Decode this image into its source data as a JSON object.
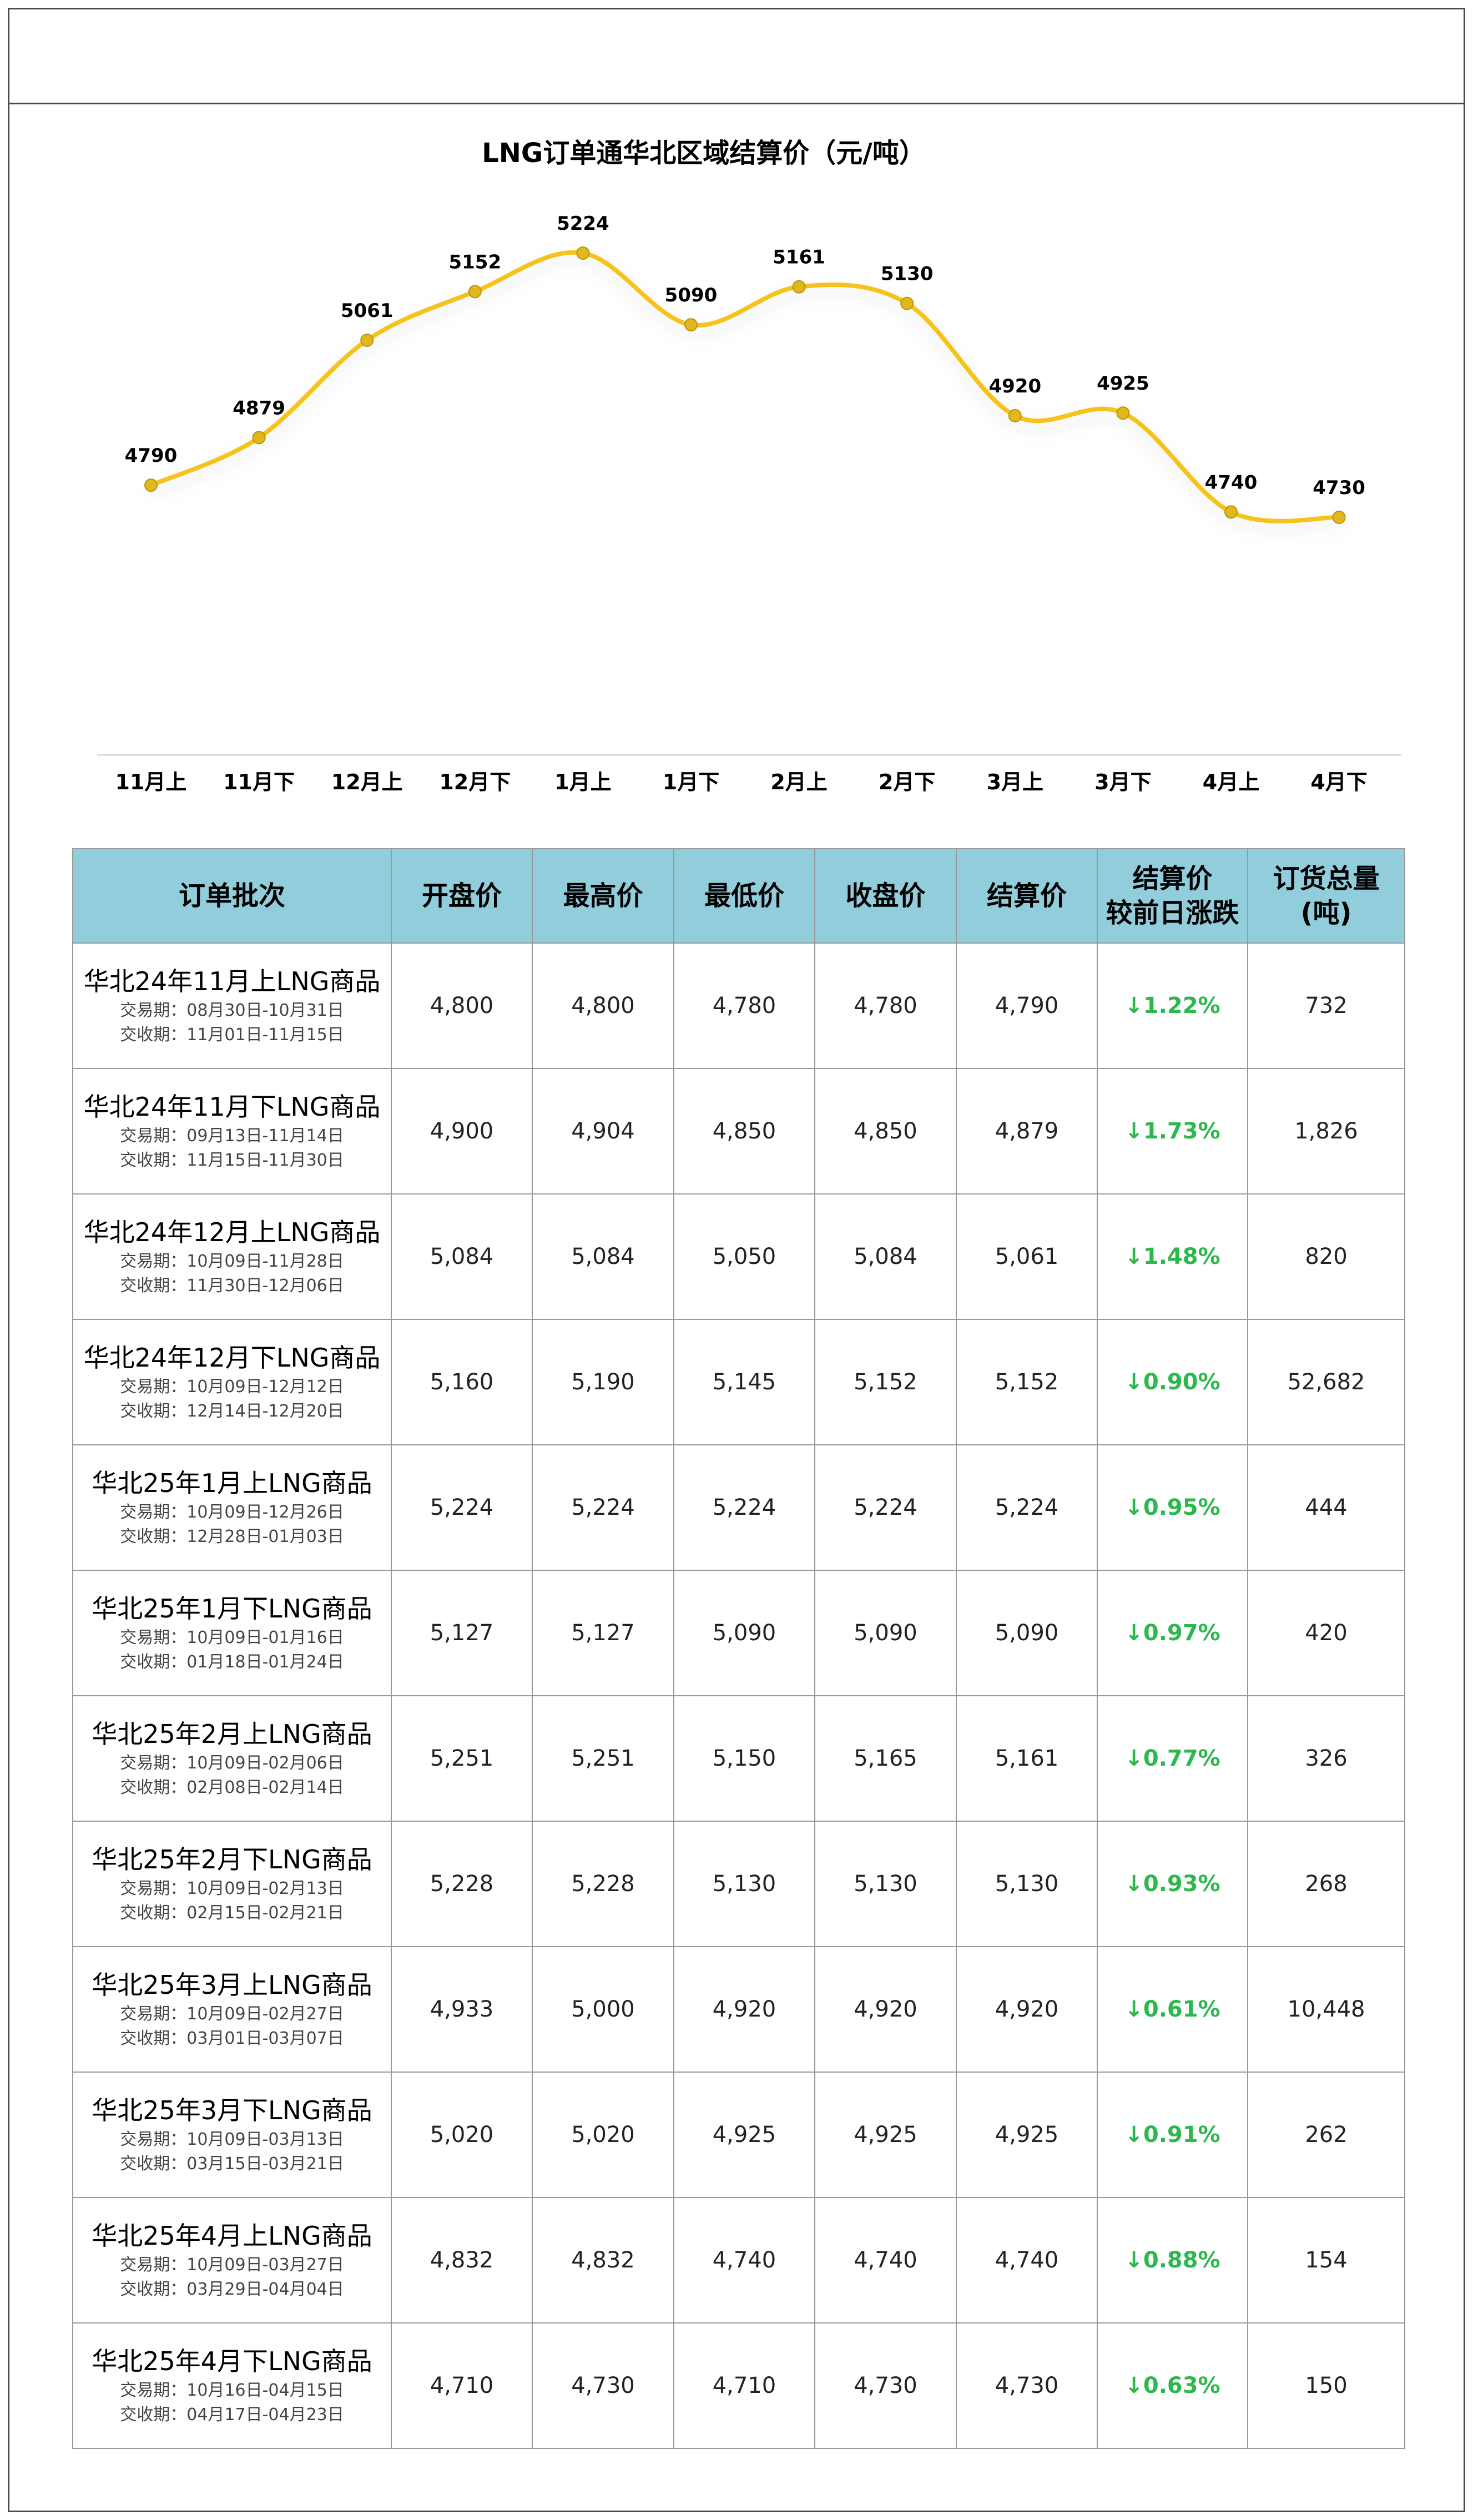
{
  "chart_data": {
    "type": "line",
    "title": "LNG订单通华北区域结算价（元/吨）",
    "categories": [
      "11月上",
      "11月下",
      "12月上",
      "12月下",
      "1月上",
      "1月下",
      "2月上",
      "2月下",
      "3月上",
      "3月下",
      "4月上",
      "4月下"
    ],
    "values": [
      4790,
      4879,
      5061,
      5152,
      5224,
      5090,
      5161,
      5130,
      4920,
      4925,
      4740,
      4730
    ],
    "data_labels": [
      "4790",
      "4879",
      "5061",
      "5152",
      "5224",
      "5090",
      "5161",
      "5130",
      "4920",
      "4925",
      "4740",
      "4730"
    ],
    "line_color": "#f5c31a",
    "marker_color": "#e0b81c",
    "grid": false,
    "legend": "none"
  },
  "table": {
    "headers": [
      "订单批次",
      "开盘价",
      "最高价",
      "最低价",
      "收盘价",
      "结算价",
      "结算价\n较前日涨跌",
      "订货总量\n(吨)"
    ],
    "rows": [
      {
        "name": "华北24年11月上LNG商品",
        "trade": "交易期：08月30日-10月31日",
        "deliver": "交收期：11月01日-11月15日",
        "cells": [
          "4,800",
          "4,800",
          "4,780",
          "4,780",
          "4,790"
        ],
        "change": "↓1.22%",
        "volume": "732"
      },
      {
        "name": "华北24年11月下LNG商品",
        "trade": "交易期：09月13日-11月14日",
        "deliver": "交收期：11月15日-11月30日",
        "cells": [
          "4,900",
          "4,904",
          "4,850",
          "4,850",
          "4,879"
        ],
        "change": "↓1.73%",
        "volume": "1,826"
      },
      {
        "name": "华北24年12月上LNG商品",
        "trade": "交易期：10月09日-11月28日",
        "deliver": "交收期：11月30日-12月06日",
        "cells": [
          "5,084",
          "5,084",
          "5,050",
          "5,084",
          "5,061"
        ],
        "change": "↓1.48%",
        "volume": "820"
      },
      {
        "name": "华北24年12月下LNG商品",
        "trade": "交易期：10月09日-12月12日",
        "deliver": "交收期：12月14日-12月20日",
        "cells": [
          "5,160",
          "5,190",
          "5,145",
          "5,152",
          "5,152"
        ],
        "change": "↓0.90%",
        "volume": "52,682"
      },
      {
        "name": "华北25年1月上LNG商品",
        "trade": "交易期：10月09日-12月26日",
        "deliver": "交收期：12月28日-01月03日",
        "cells": [
          "5,224",
          "5,224",
          "5,224",
          "5,224",
          "5,224"
        ],
        "change": "↓0.95%",
        "volume": "444"
      },
      {
        "name": "华北25年1月下LNG商品",
        "trade": "交易期：10月09日-01月16日",
        "deliver": "交收期：01月18日-01月24日",
        "cells": [
          "5,127",
          "5,127",
          "5,090",
          "5,090",
          "5,090"
        ],
        "change": "↓0.97%",
        "volume": "420"
      },
      {
        "name": "华北25年2月上LNG商品",
        "trade": "交易期：10月09日-02月06日",
        "deliver": "交收期：02月08日-02月14日",
        "cells": [
          "5,251",
          "5,251",
          "5,150",
          "5,165",
          "5,161"
        ],
        "change": "↓0.77%",
        "volume": "326"
      },
      {
        "name": "华北25年2月下LNG商品",
        "trade": "交易期：10月09日-02月13日",
        "deliver": "交收期：02月15日-02月21日",
        "cells": [
          "5,228",
          "5,228",
          "5,130",
          "5,130",
          "5,130"
        ],
        "change": "↓0.93%",
        "volume": "268"
      },
      {
        "name": "华北25年3月上LNG商品",
        "trade": "交易期：10月09日-02月27日",
        "deliver": "交收期：03月01日-03月07日",
        "cells": [
          "4,933",
          "5,000",
          "4,920",
          "4,920",
          "4,920"
        ],
        "change": "↓0.61%",
        "volume": "10,448"
      },
      {
        "name": "华北25年3月下LNG商品",
        "trade": "交易期：10月09日-03月13日",
        "deliver": "交收期：03月15日-03月21日",
        "cells": [
          "5,020",
          "5,020",
          "4,925",
          "4,925",
          "4,925"
        ],
        "change": "↓0.91%",
        "volume": "262"
      },
      {
        "name": "华北25年4月上LNG商品",
        "trade": "交易期：10月09日-03月27日",
        "deliver": "交收期：03月29日-04月04日",
        "cells": [
          "4,832",
          "4,832",
          "4,740",
          "4,740",
          "4,740"
        ],
        "change": "↓0.88%",
        "volume": "154"
      },
      {
        "name": "华北25年4月下LNG商品",
        "trade": "交易期：10月16日-04月15日",
        "deliver": "交收期：04月17日-04月23日",
        "cells": [
          "4,710",
          "4,730",
          "4,710",
          "4,730",
          "4,730"
        ],
        "change": "↓0.63%",
        "volume": "150"
      }
    ]
  }
}
